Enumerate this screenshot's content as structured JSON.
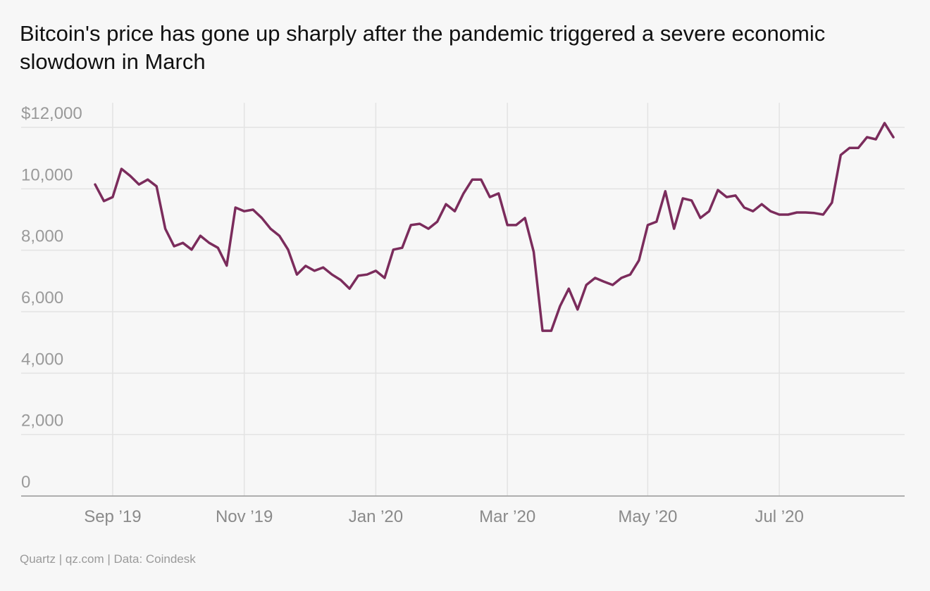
{
  "chart_data": {
    "type": "line",
    "title": "Bitcoin's price has gone up sharply after the pandemic triggered a severe economic slowdown in March",
    "source": "Quartz | qz.com | Data: Coindesk",
    "color": "#7b2c5c",
    "grid": true,
    "ylim": [
      0,
      12800
    ],
    "yticks": [
      0,
      {
        "value": 2000,
        "label": "2,000"
      },
      {
        "value": 4000,
        "label": "4,000"
      },
      {
        "value": 6000,
        "label": "6,000"
      },
      {
        "value": 8000,
        "label": "8,000"
      },
      {
        "value": 10000,
        "label": "10,000"
      },
      {
        "value": 12000,
        "label": "$12,000"
      }
    ],
    "categories": [
      null,
      null,
      "Sep ’19",
      null,
      null,
      null,
      null,
      null,
      null,
      null,
      null,
      null,
      null,
      null,
      null,
      null,
      null,
      "Nov ’19",
      null,
      null,
      null,
      null,
      null,
      null,
      null,
      null,
      null,
      null,
      null,
      null,
      null,
      null,
      "Jan ’20",
      null,
      null,
      null,
      null,
      null,
      null,
      null,
      null,
      null,
      null,
      null,
      null,
      null,
      null,
      "Mar ’20",
      null,
      null,
      null,
      null,
      null,
      null,
      null,
      null,
      null,
      null,
      null,
      null,
      null,
      null,
      null,
      "May ’20",
      null,
      null,
      null,
      null,
      null,
      null,
      null,
      null,
      null,
      null,
      null,
      null,
      null,
      null,
      "Jul ’20",
      null,
      null,
      null,
      null,
      null,
      null,
      null,
      null,
      null,
      null,
      null,
      null,
      null
    ],
    "values": [
      10140,
      9600,
      9730,
      10650,
      10420,
      10140,
      10300,
      10080,
      8700,
      8130,
      8240,
      8020,
      8470,
      8240,
      8080,
      7500,
      9390,
      9270,
      9320,
      9050,
      8700,
      8470,
      8020,
      7210,
      7490,
      7330,
      7440,
      7210,
      7030,
      6750,
      7170,
      7210,
      7330,
      7100,
      8020,
      8080,
      8820,
      8860,
      8700,
      8930,
      9500,
      9270,
      9850,
      10300,
      10300,
      9730,
      9850,
      8820,
      8820,
      9050,
      7950,
      5380,
      5380,
      6180,
      6750,
      6070,
      6870,
      7100,
      6980,
      6870,
      7100,
      7210,
      7670,
      8820,
      8930,
      9920,
      8700,
      9690,
      9620,
      9050,
      9270,
      9960,
      9730,
      9780,
      9390,
      9270,
      9500,
      9270,
      9160,
      9160,
      9230,
      9230,
      9210,
      9160,
      9550,
      11100,
      11330,
      11330,
      11680,
      11610,
      12140,
      11680
    ]
  }
}
